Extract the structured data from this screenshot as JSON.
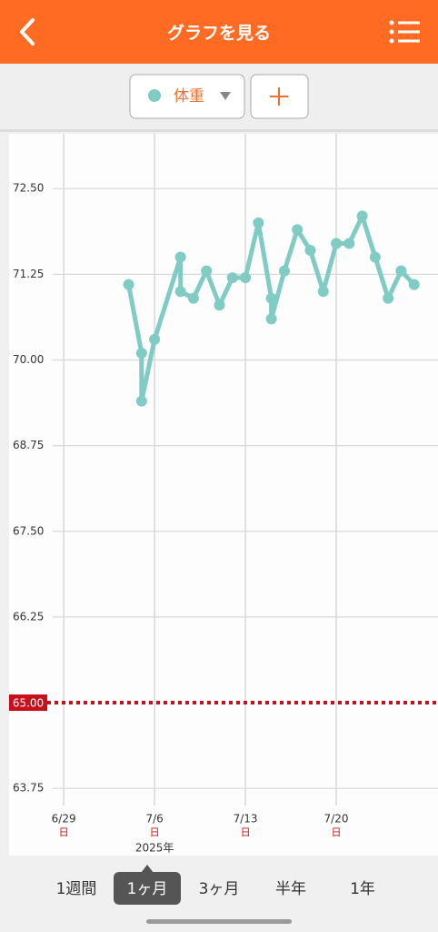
{
  "header": {
    "title": "グラフを見る"
  },
  "chart_data": {
    "type": "line",
    "x": [
      "7/4",
      "7/5",
      "7/5",
      "7/6",
      "7/8",
      "7/8",
      "7/9",
      "7/10",
      "7/11",
      "7/12",
      "7/13",
      "7/14",
      "7/15",
      "7/15",
      "7/16",
      "7/17",
      "7/18",
      "7/19",
      "7/20",
      "7/21",
      "7/22",
      "7/23",
      "7/24",
      "7/25",
      "7/26"
    ],
    "series": [
      {
        "name": "体重",
        "color": "#80cbc4",
        "values": [
          71.1,
          70.1,
          69.4,
          70.3,
          71.5,
          71.0,
          70.9,
          71.3,
          70.8,
          71.2,
          71.2,
          72.0,
          70.9,
          70.6,
          71.3,
          71.9,
          71.6,
          71.0,
          71.7,
          71.7,
          72.1,
          71.5,
          70.9,
          71.3,
          71.1
        ]
      }
    ],
    "xlim": [
      "6/25",
      "7/27"
    ],
    "xticks": [
      "6/29",
      "7/6",
      "7/13",
      "7/20"
    ],
    "xtick_weekdays": [
      "日",
      "日",
      "日",
      "日"
    ],
    "year_label": "2025年",
    "ylim": [
      63.5,
      73.3
    ],
    "yticks": [
      {
        "value": 63.75,
        "label": "63.75"
      },
      {
        "value": 66.25,
        "label": "66.25"
      },
      {
        "value": 67.5,
        "label": "67.50"
      },
      {
        "value": 68.75,
        "label": "68.75"
      },
      {
        "value": 70,
        "label": "70.00"
      },
      {
        "value": 71.25,
        "label": "71.25"
      },
      {
        "value": 72.5,
        "label": "72.50"
      }
    ],
    "target": {
      "value": 65,
      "label": "65.00",
      "color": "#c8101c"
    },
    "grid": true
  },
  "tabs": {
    "items": [
      "1週間",
      "1ヶ月",
      "3ヶ月",
      "半年",
      "1年"
    ],
    "selected": 1
  }
}
